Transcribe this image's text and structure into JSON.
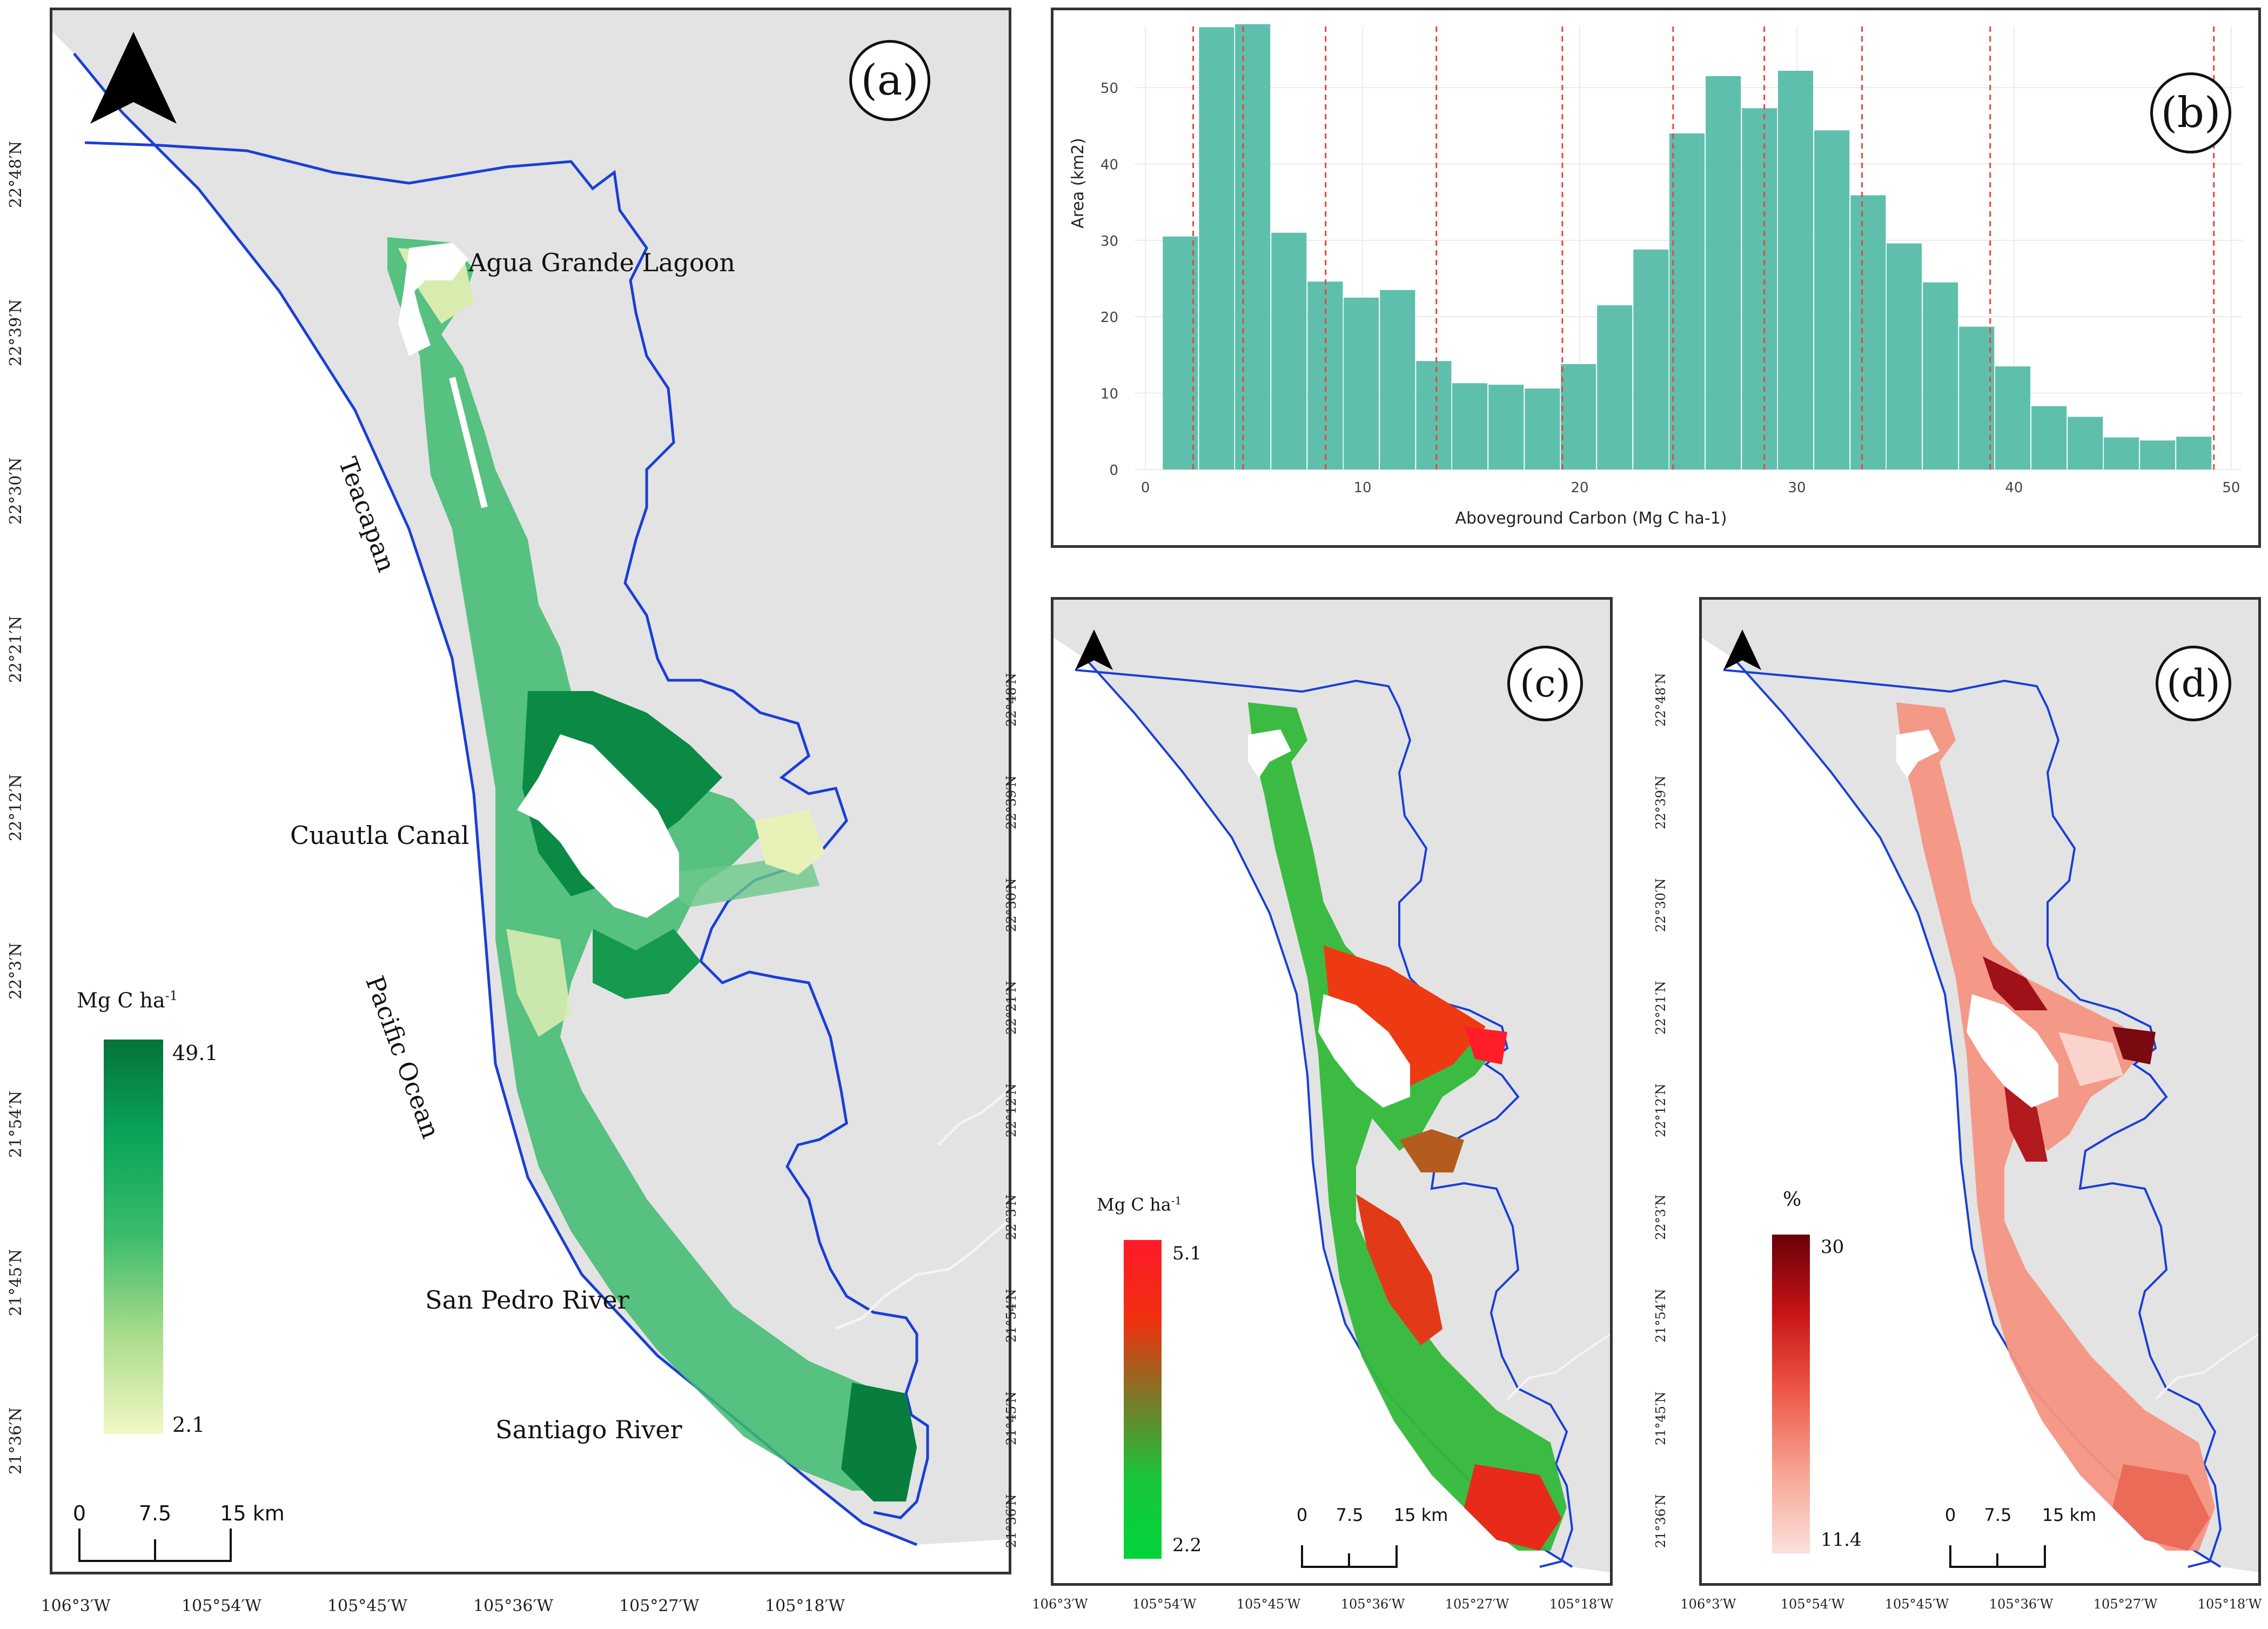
{
  "panels": {
    "a": {
      "label": "(a)"
    },
    "b": {
      "label": "(b)"
    },
    "c": {
      "label": "(c)"
    },
    "d": {
      "label": "(d)"
    }
  },
  "places": {
    "agua_grande": "Agua Grande Lagoon",
    "teacapan": "Teacapan",
    "cuautla": "Cuautla Canal",
    "pacific": "Pacific Ocean",
    "san_pedro": "San Pedro River",
    "santiago": "Santiago River"
  },
  "lat_ticks": [
    "22°48′N",
    "22°39′N",
    "22°30′N",
    "22°21′N",
    "22°12′N",
    "22°3′N",
    "21°54′N",
    "21°45′N",
    "21°36′N"
  ],
  "lon_ticks_a": [
    "106°3′W",
    "105°54′W",
    "105°45′W",
    "105°36′W",
    "105°27′W",
    "105°18′W"
  ],
  "lon_ticks_cd": [
    "106°3′W",
    "105°54′W",
    "105°45′W",
    "105°36′W",
    "105°27′W",
    "105°18′W"
  ],
  "legend_a": {
    "title": "Mg C ha-1",
    "max": "49.1",
    "min": "2.1",
    "colors": [
      "#f3f8c4",
      "#a9dc8c",
      "#3cbc6c",
      "#0aa55a",
      "#05733a"
    ]
  },
  "legend_c": {
    "title": "Mg C ha-1",
    "max": "5.1",
    "min": "2.2",
    "colors": [
      "#00d43a",
      "#18c63a",
      "#7a7a28",
      "#f03010",
      "#ff1a2a"
    ]
  },
  "legend_d": {
    "title": "%",
    "max": "30",
    "min": "11.4",
    "colors": [
      "#fbe0dc",
      "#f7a594",
      "#ef5a4a",
      "#c81418",
      "#6a0008"
    ]
  },
  "scale": {
    "zero": "0",
    "mid": "7.5",
    "end": "15 km"
  },
  "colors": {
    "boundary": "#1a3fd6",
    "hist_bar": "#5fbfad",
    "hist_line": "#e8463c",
    "bg": "#e3e3e3"
  },
  "chart_data": {
    "type": "bar",
    "title": "",
    "xlabel": "Aboveground Carbon (Mg C ha-1)",
    "ylabel": "Area (km2)",
    "xlim": [
      -0.5,
      50.5
    ],
    "ylim": [
      0,
      58
    ],
    "x_ticks": [
      0,
      10,
      20,
      30,
      40,
      50
    ],
    "y_ticks": [
      0,
      10,
      20,
      30,
      40,
      50
    ],
    "bin_width": 1.67,
    "bin_starts": [
      0.8,
      2.47,
      4.13,
      5.8,
      7.47,
      9.13,
      10.8,
      12.47,
      14.13,
      15.8,
      17.47,
      19.13,
      20.8,
      22.47,
      24.13,
      25.8,
      27.47,
      29.13,
      30.8,
      32.47,
      34.13,
      35.8,
      37.47,
      39.13,
      40.8,
      42.47,
      44.13,
      45.8,
      47.47
    ],
    "values": [
      30.5,
      57.9,
      58.3,
      31,
      24.6,
      22.5,
      23.5,
      14.2,
      11.3,
      11.1,
      10.6,
      13.8,
      21.5,
      28.8,
      44,
      51.5,
      47.3,
      52.2,
      44.4,
      35.9,
      29.6,
      24.5,
      18.7,
      13.5,
      8.3,
      6.9,
      4.2,
      3.8,
      4.3
    ],
    "red_lines": [
      2.2,
      4.5,
      8.3,
      13.4,
      19.2,
      24.3,
      28.5,
      33,
      38.9,
      49.2
    ]
  }
}
